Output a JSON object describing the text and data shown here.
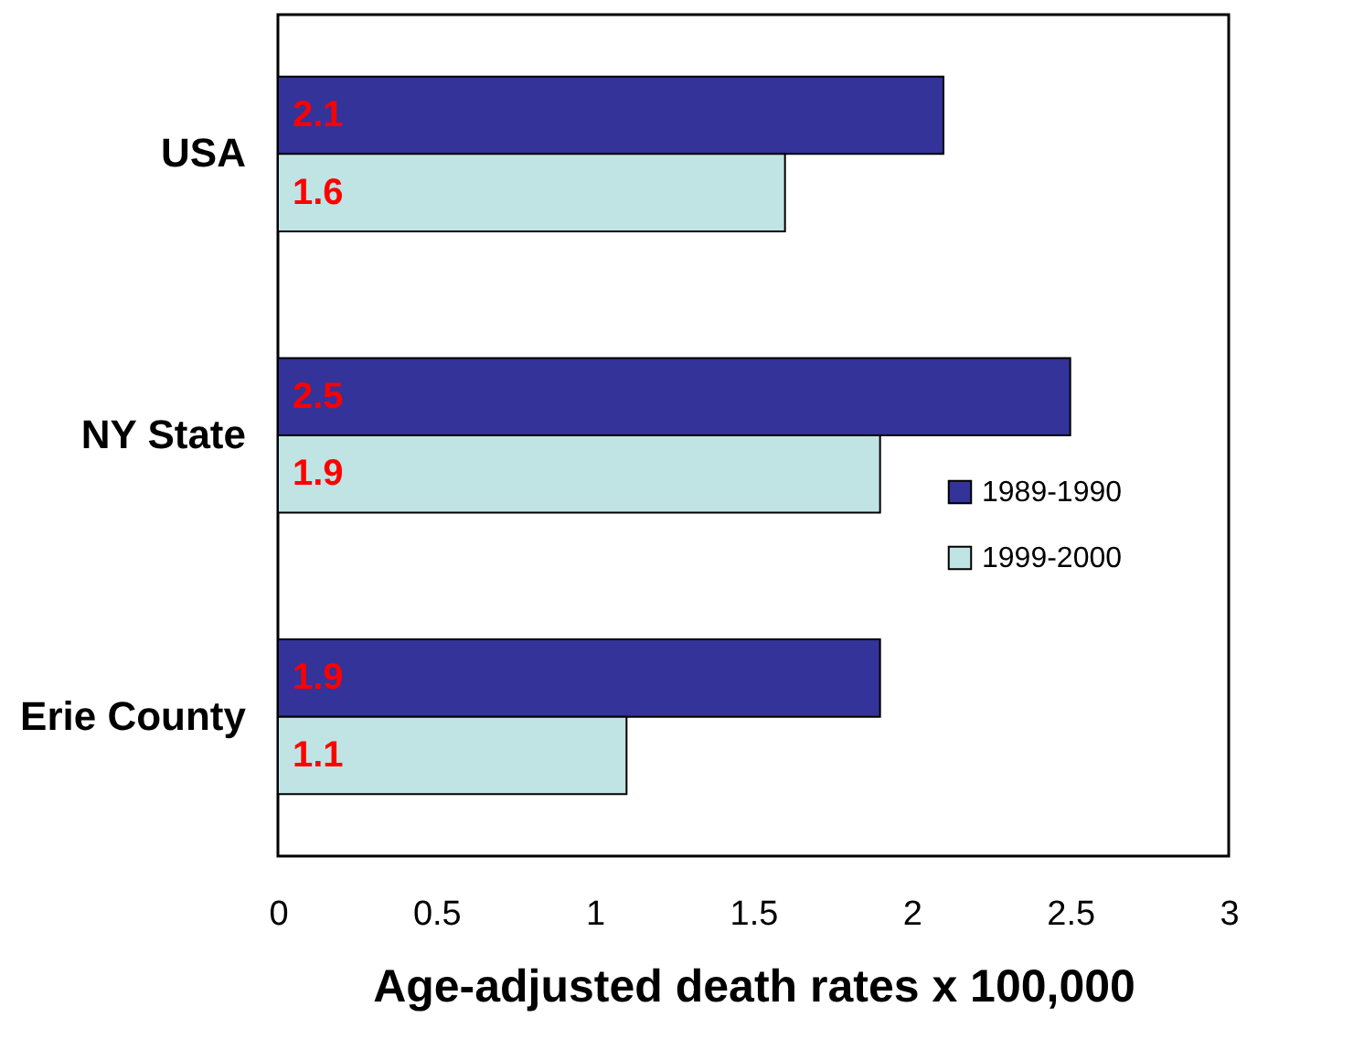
{
  "chart_data": {
    "type": "bar",
    "orientation": "horizontal",
    "xlabel": "Age-adjusted death rates x 100,000",
    "categories": [
      "USA",
      "NY State",
      "Erie County"
    ],
    "series": [
      {
        "name": "1989-1990",
        "color": "#333399",
        "values": [
          2.1,
          2.5,
          1.9
        ]
      },
      {
        "name": "1999-2000",
        "color": "#c0e4e4",
        "values": [
          1.6,
          1.9,
          1.1
        ]
      }
    ],
    "xlim": [
      0,
      3
    ],
    "xticks": [
      0,
      0.5,
      1,
      1.5,
      2,
      2.5,
      3
    ],
    "grid": false,
    "legend": "right",
    "data_labels": true
  }
}
